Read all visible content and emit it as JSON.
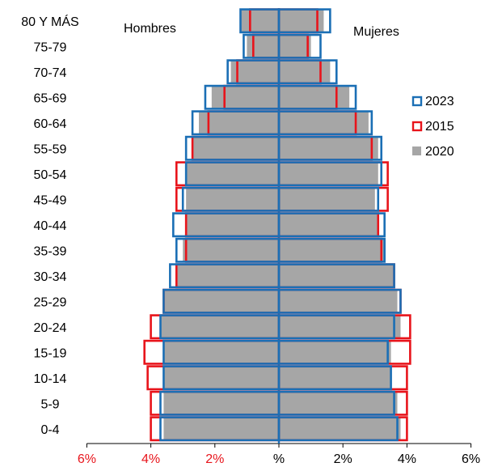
{
  "chart_data": {
    "type": "bar",
    "orientation": "horizontal",
    "layout": "population-pyramid",
    "categories": [
      "0-4",
      "5-9",
      "10-14",
      "15-19",
      "20-24",
      "25-29",
      "30-34",
      "35-39",
      "40-44",
      "45-49",
      "50-54",
      "55-59",
      "60-64",
      "65-69",
      "70-74",
      "75-79",
      "80 Y MÁS"
    ],
    "left_title": "Hombres",
    "right_title": "Mujeres",
    "x_ticks": [
      {
        "value": -6,
        "label": "6%",
        "color": "#e8141b"
      },
      {
        "value": -4,
        "label": "4%",
        "color": "#e8141b"
      },
      {
        "value": -2,
        "label": "2%",
        "color": "#e8141b"
      },
      {
        "value": 0,
        "label": "%",
        "color": "#000000"
      },
      {
        "value": 2,
        "label": "2%",
        "color": "#000000"
      },
      {
        "value": 4,
        "label": "4%",
        "color": "#000000"
      },
      {
        "value": 6,
        "label": "6%",
        "color": "#000000"
      }
    ],
    "xlim": [
      -6,
      6
    ],
    "legend_position": "right",
    "series": [
      {
        "name": "2020",
        "style": "filled",
        "color": "#a6a6a6",
        "hombres": [
          3.6,
          3.6,
          3.6,
          3.6,
          3.7,
          3.6,
          3.2,
          3.0,
          2.9,
          2.9,
          2.9,
          2.7,
          2.5,
          2.1,
          1.5,
          1.0,
          1.2
        ],
        "mujeres": [
          3.8,
          3.7,
          3.5,
          3.5,
          3.8,
          3.7,
          3.6,
          3.3,
          3.1,
          3.0,
          3.1,
          3.1,
          2.8,
          2.2,
          1.6,
          1.0,
          1.4
        ]
      },
      {
        "name": "2015",
        "style": "outline",
        "color": "#e8141b",
        "hombres": [
          4.0,
          4.0,
          4.1,
          4.2,
          4.0,
          3.6,
          3.2,
          2.9,
          2.9,
          3.2,
          3.2,
          2.7,
          2.2,
          1.7,
          1.3,
          0.8,
          0.9
        ],
        "mujeres": [
          4.0,
          4.0,
          4.0,
          4.1,
          4.1,
          3.8,
          3.6,
          3.2,
          3.1,
          3.4,
          3.4,
          2.9,
          2.4,
          1.8,
          1.3,
          0.9,
          1.2
        ]
      },
      {
        "name": "2023",
        "style": "outline",
        "color": "#1b6fb5",
        "hombres": [
          3.7,
          3.7,
          3.6,
          3.6,
          3.7,
          3.6,
          3.4,
          3.2,
          3.3,
          3.0,
          2.9,
          2.9,
          2.7,
          2.3,
          1.6,
          1.1,
          1.2
        ],
        "mujeres": [
          3.7,
          3.6,
          3.5,
          3.4,
          3.6,
          3.8,
          3.6,
          3.3,
          3.3,
          3.1,
          3.2,
          3.2,
          2.9,
          2.4,
          1.8,
          1.3,
          1.6
        ]
      }
    ],
    "legend_order": [
      "2023",
      "2015",
      "2020"
    ]
  }
}
